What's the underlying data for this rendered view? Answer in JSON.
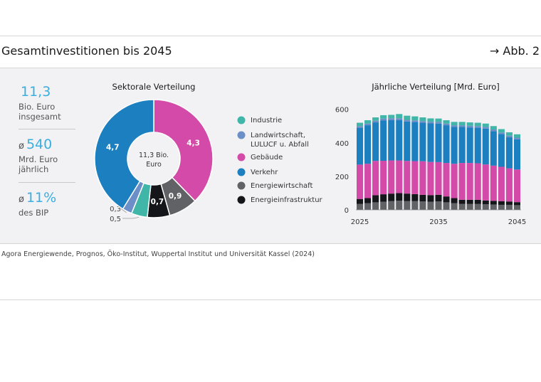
{
  "header": {
    "title": "Gesamtinvestitionen bis 2045",
    "figure_ref": "→ Abb. 2"
  },
  "stats": [
    {
      "prefix": "",
      "value": "11,3",
      "label_lines": [
        "Bio. Euro",
        "insgesamt"
      ]
    },
    {
      "prefix": "ø",
      "value": "540",
      "label_lines": [
        "Mrd. Euro",
        "jährlich"
      ]
    },
    {
      "prefix": "ø",
      "value": "11%",
      "label_lines": [
        "des BIP"
      ]
    }
  ],
  "source": "Agora Energiewende, Prognos, Öko-Institut, Wuppertal Institut und Universität Kassel (2024)",
  "colors": {
    "Industrie": "#3fb6a8",
    "Landwirtschaft, LULUCF u. Abfall": "#6d8fc8",
    "Gebäude": "#d44aa8",
    "Verkehr": "#1b7fc0",
    "Energiewirtschaft": "#606265",
    "Energieinfrastruktur": "#14161a"
  },
  "legend": [
    {
      "name": "Industrie",
      "lines": [
        "Industrie"
      ]
    },
    {
      "name": "Landwirtschaft, LULUCF u. Abfall",
      "lines": [
        "Landwirtschaft,",
        "LULUCF u. Abfall"
      ]
    },
    {
      "name": "Gebäude",
      "lines": [
        "Gebäude"
      ]
    },
    {
      "name": "Verkehr",
      "lines": [
        "Verkehr"
      ]
    },
    {
      "name": "Energiewirtschaft",
      "lines": [
        "Energiewirtschaft"
      ]
    },
    {
      "name": "Energieinfrastruktur",
      "lines": [
        "Energieinfrastruktur"
      ]
    }
  ],
  "chart_data": [
    {
      "type": "pie",
      "title": "Sektorale Verteilung",
      "center_label": [
        "11,3 Bio.",
        "Euro"
      ],
      "slices": [
        {
          "name": "Gebäude",
          "value": 4.3,
          "label": "4,3"
        },
        {
          "name": "Energiewirtschaft",
          "value": 0.9,
          "label": "0,9"
        },
        {
          "name": "Energieinfrastruktur",
          "value": 0.7,
          "label": "0,7"
        },
        {
          "name": "Industrie",
          "value": 0.5,
          "label": "0,5"
        },
        {
          "name": "Landwirtschaft, LULUCF u. Abfall",
          "value": 0.3,
          "label": "0,3"
        },
        {
          "name": "Verkehr",
          "value": 4.7,
          "label": "4,7"
        }
      ]
    },
    {
      "type": "bar",
      "stacked": true,
      "title": "Jährliche Verteilung [Mrd. Euro]",
      "x": [
        2025,
        2026,
        2027,
        2028,
        2029,
        2030,
        2031,
        2032,
        2033,
        2034,
        2035,
        2036,
        2037,
        2038,
        2039,
        2040,
        2041,
        2042,
        2043,
        2044,
        2045
      ],
      "x_ticks": [
        2025,
        2035,
        2045
      ],
      "ylim": [
        0,
        620
      ],
      "y_ticks": [
        0,
        200,
        400,
        600
      ],
      "series": [
        {
          "name": "Energiewirtschaft",
          "values": [
            35,
            40,
            45,
            48,
            52,
            55,
            52,
            52,
            50,
            48,
            50,
            45,
            40,
            35,
            35,
            35,
            33,
            32,
            30,
            30,
            28
          ]
        },
        {
          "name": "Energieinfrastruktur",
          "values": [
            30,
            30,
            42,
            45,
            45,
            45,
            45,
            42,
            40,
            40,
            40,
            35,
            30,
            25,
            25,
            25,
            23,
            22,
            22,
            20,
            18
          ]
        },
        {
          "name": "Gebäude",
          "values": [
            205,
            205,
            205,
            200,
            198,
            195,
            195,
            197,
            200,
            198,
            195,
            200,
            205,
            220,
            220,
            218,
            215,
            210,
            205,
            198,
            195
          ]
        },
        {
          "name": "Verkehr",
          "values": [
            220,
            230,
            230,
            240,
            240,
            240,
            235,
            233,
            230,
            230,
            230,
            225,
            220,
            215,
            212,
            212,
            214,
            206,
            195,
            185,
            180
          ]
        },
        {
          "name": "Landwirtschaft, LULUCF u. Abfall",
          "values": [
            10,
            10,
            10,
            12,
            12,
            12,
            10,
            10,
            10,
            10,
            10,
            10,
            10,
            10,
            10,
            10,
            10,
            10,
            10,
            10,
            10
          ]
        },
        {
          "name": "Industrie",
          "values": [
            20,
            20,
            20,
            20,
            20,
            25,
            25,
            24,
            22,
            20,
            20,
            20,
            20,
            20,
            20,
            20,
            20,
            20,
            20,
            20,
            20
          ]
        }
      ]
    }
  ]
}
